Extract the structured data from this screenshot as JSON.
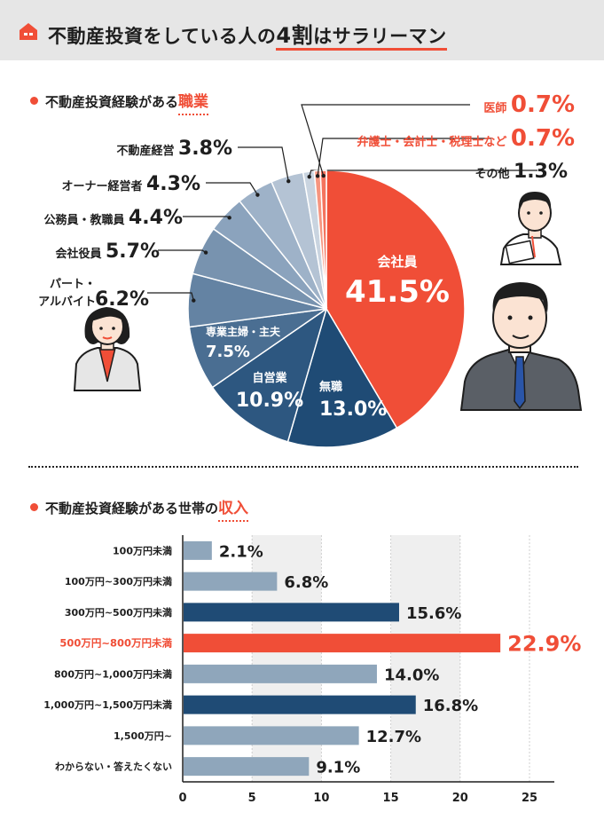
{
  "header": {
    "title_part1": "不動産投資をしている人の",
    "title_emph": "4割",
    "title_part2": "はサラリーマン"
  },
  "occupation": {
    "label_prefix": "不動産投資経験がある",
    "label_highlight": "職業"
  },
  "income": {
    "label_prefix": "不動産投資経験がある世帯の",
    "label_highlight": "収入"
  },
  "chart_data": [
    {
      "type": "pie",
      "title": "不動産投資経験がある職業",
      "unit": "%",
      "slices": [
        {
          "label": "会社員",
          "value": 41.5,
          "value_text": "41.5%",
          "color": "#f04e37"
        },
        {
          "label": "無職",
          "value": 13.0,
          "value_text": "13.0%",
          "color": "#1f4b75"
        },
        {
          "label": "自営業",
          "value": 10.9,
          "value_text": "10.9%",
          "color": "#2d5780"
        },
        {
          "label": "専業主婦・主夫",
          "value": 7.5,
          "value_text": "7.5%",
          "color": "#4a6e92"
        },
        {
          "label": "パート・アルバイト",
          "value": 6.2,
          "value_text": "6.2%",
          "color": "#6483a3"
        },
        {
          "label": "会社役員",
          "value": 5.7,
          "value_text": "5.7%",
          "color": "#7893af"
        },
        {
          "label": "公務員・教職員",
          "value": 4.4,
          "value_text": "4.4%",
          "color": "#8ba3bd"
        },
        {
          "label": "オーナー経営者",
          "value": 4.3,
          "value_text": "4.3%",
          "color": "#9eb2c8"
        },
        {
          "label": "不動産経営",
          "value": 3.8,
          "value_text": "3.8%",
          "color": "#b4c3d4"
        },
        {
          "label": "その他",
          "value": 1.3,
          "value_text": "1.3%",
          "color": "#c9d4e0"
        },
        {
          "label": "弁護士・会計士・税理士など",
          "value": 0.7,
          "value_text": "0.7%",
          "color": "#f6957f"
        },
        {
          "label": "医師",
          "value": 0.7,
          "value_text": "0.7%",
          "color": "#f4735e"
        }
      ]
    },
    {
      "type": "bar",
      "orientation": "horizontal",
      "title": "不動産投資経験がある世帯の収入",
      "unit": "%",
      "categories": [
        "100万円未満",
        "100万円~300万円未満",
        "300万円~500万円未満",
        "500万円~800万円未満",
        "800万円~1,000万円未満",
        "1,000万円~1,500万円未満",
        "1,500万円~",
        "わからない・答えたくない"
      ],
      "values": [
        2.1,
        6.8,
        15.6,
        22.9,
        14.0,
        16.8,
        12.7,
        9.1
      ],
      "value_labels": [
        "2.1%",
        "6.8%",
        "15.6%",
        "22.9%",
        "14.0%",
        "16.8%",
        "12.7%",
        "9.1%"
      ],
      "colors": [
        "#8fa6bb",
        "#8fa6bb",
        "#1f4b75",
        "#f04e37",
        "#8fa6bb",
        "#1f4b75",
        "#8fa6bb",
        "#8fa6bb"
      ],
      "highlight_index": 3,
      "xlim": [
        0,
        25
      ],
      "xticks": [
        0,
        5,
        10,
        15,
        20,
        25
      ]
    }
  ]
}
